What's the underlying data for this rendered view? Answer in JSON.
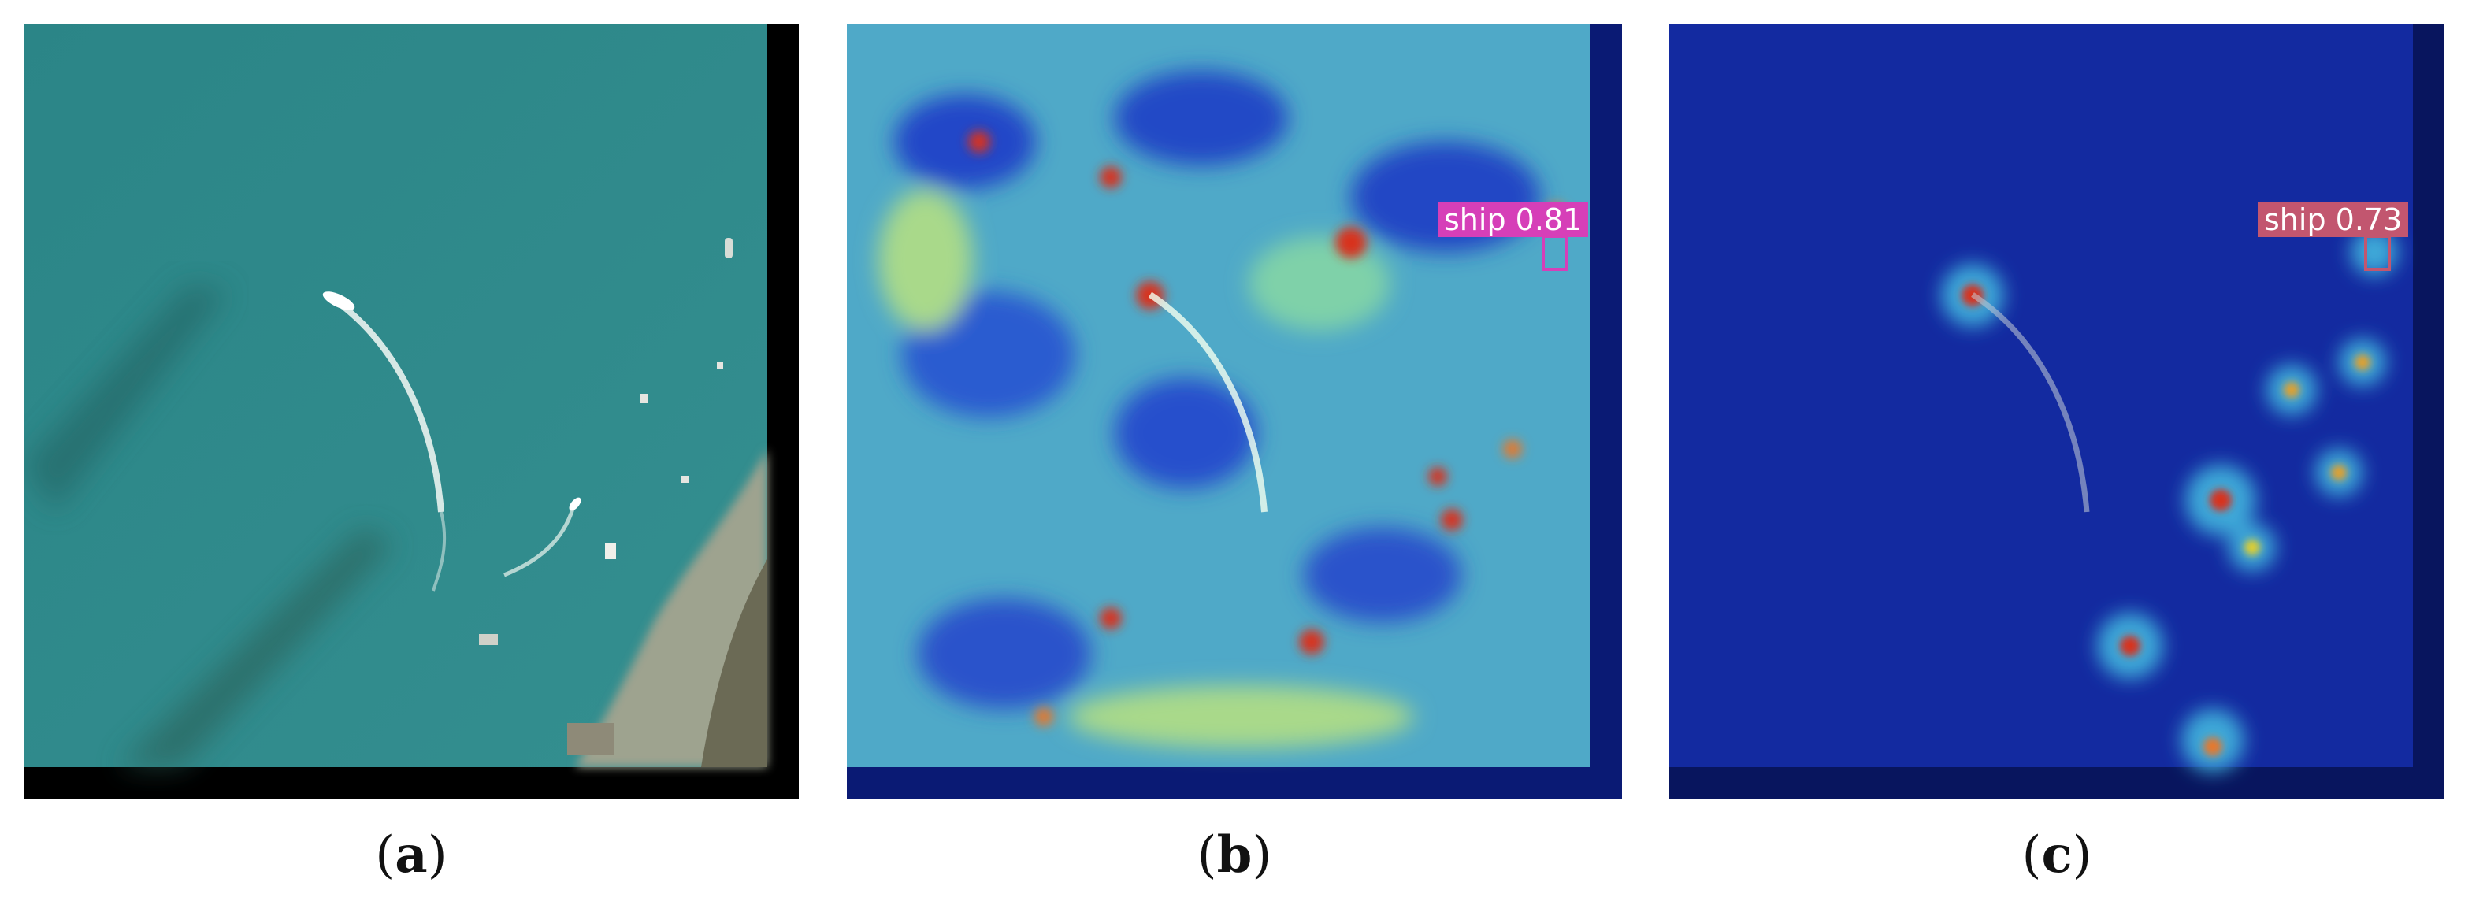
{
  "panels": [
    {
      "caption": {
        "open": "(",
        "letter": "a",
        "close": ")"
      }
    },
    {
      "caption": {
        "open": "(",
        "letter": "b",
        "close": ")"
      },
      "detection": {
        "label": "ship",
        "score": "0.81",
        "color": "#d63fb8"
      }
    },
    {
      "caption": {
        "open": "(",
        "letter": "c",
        "close": ")"
      },
      "detection": {
        "label": "ship",
        "score": "0.73",
        "color": "#c2566f"
      }
    }
  ],
  "colors": {
    "sea": "#2f8b8d",
    "padding": "#000000",
    "shore": "#b9b09a",
    "jet_low": "#1f3fc4",
    "jet_mid": "#52c3c9",
    "jet_high": "#d8321f",
    "attention_bg": "#10208a"
  }
}
